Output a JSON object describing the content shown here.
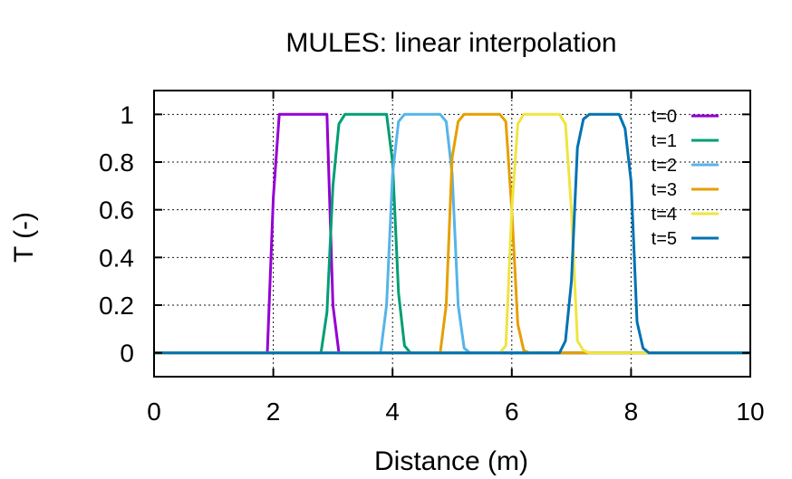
{
  "chart_data": {
    "type": "line",
    "title": "MULES: linear interpolation",
    "xlabel": "Distance (m)",
    "ylabel": "T (-)",
    "xlim": [
      0,
      10
    ],
    "ylim": [
      -0.1,
      1.1
    ],
    "xticks": [
      0,
      2,
      4,
      6,
      8,
      10
    ],
    "xtick_labels": [
      "0",
      "2",
      "4",
      "6",
      "8",
      "10"
    ],
    "yticks": [
      0,
      0.2,
      0.4,
      0.6,
      0.8,
      1
    ],
    "ytick_labels": [
      "0",
      "0.2",
      "0.4",
      "0.6",
      "0.8",
      "1"
    ],
    "grid": true,
    "legend_position": "top-right",
    "series": [
      {
        "name": "t=0",
        "color": "#9400d3",
        "x": [
          0,
          1.9,
          2.0,
          2.1,
          2.9,
          3.0,
          3.1,
          10
        ],
        "y": [
          0,
          0,
          0.65,
          1,
          1,
          0.2,
          0,
          0
        ]
      },
      {
        "name": "t=1",
        "color": "#009e73",
        "x": [
          0,
          2.8,
          2.9,
          3.0,
          3.1,
          3.2,
          3.3,
          3.8,
          3.9,
          4.0,
          4.1,
          4.2,
          4.3,
          10
        ],
        "y": [
          0,
          0,
          0.17,
          0.7,
          0.96,
          1.0,
          1,
          1,
          1.0,
          0.8,
          0.25,
          0.03,
          0,
          0
        ]
      },
      {
        "name": "t=2",
        "color": "#56b4e9",
        "x": [
          0,
          3.8,
          3.9,
          4.0,
          4.1,
          4.2,
          4.3,
          4.8,
          4.9,
          5.0,
          5.1,
          5.2,
          5.3,
          10
        ],
        "y": [
          0,
          0,
          0.2,
          0.75,
          0.97,
          1.0,
          1,
          1,
          0.97,
          0.75,
          0.2,
          0.02,
          0,
          0
        ]
      },
      {
        "name": "t=3",
        "color": "#e69f00",
        "x": [
          0,
          4.8,
          4.9,
          5.0,
          5.1,
          5.2,
          5.3,
          5.8,
          5.9,
          6.0,
          6.1,
          6.2,
          6.3,
          10
        ],
        "y": [
          0,
          0,
          0.2,
          0.82,
          0.97,
          1.0,
          1,
          1,
          0.97,
          0.6,
          0.12,
          0.01,
          0,
          0
        ]
      },
      {
        "name": "t=4",
        "color": "#f0e442",
        "x": [
          0,
          5.8,
          5.9,
          6.0,
          6.1,
          6.2,
          6.3,
          6.8,
          6.9,
          7.0,
          7.1,
          7.2,
          7.3,
          10
        ],
        "y": [
          0,
          0,
          0.03,
          0.6,
          0.96,
          1.0,
          1,
          1,
          0.96,
          0.6,
          0.05,
          0.01,
          0,
          0
        ]
      },
      {
        "name": "t=5",
        "color": "#0072b2",
        "x": [
          0,
          6.8,
          6.9,
          7.0,
          7.1,
          7.2,
          7.3,
          7.8,
          7.9,
          8.0,
          8.1,
          8.2,
          8.3,
          10
        ],
        "y": [
          0,
          0,
          0.05,
          0.3,
          0.86,
          0.98,
          1.0,
          1,
          0.94,
          0.72,
          0.13,
          0.02,
          0,
          0
        ]
      }
    ]
  }
}
